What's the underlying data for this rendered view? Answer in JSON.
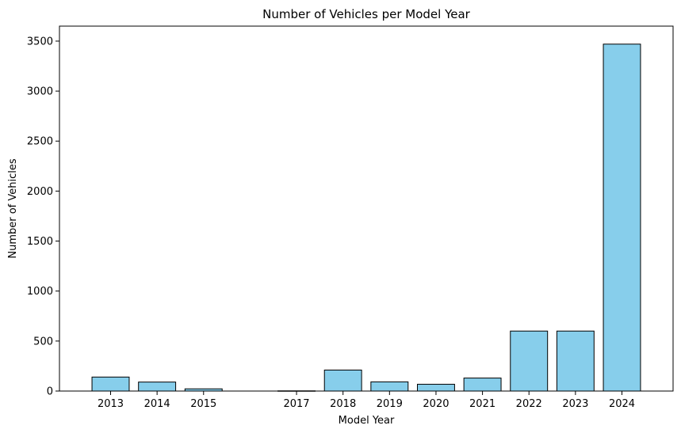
{
  "chart_data": {
    "type": "bar",
    "title": "Number of Vehicles per Model Year",
    "xlabel": "Model Year",
    "ylabel": "Number of Vehicles",
    "x": [
      2013,
      2014,
      2015,
      2017,
      2018,
      2019,
      2020,
      2021,
      2022,
      2023,
      2024
    ],
    "values": [
      140,
      90,
      22,
      2,
      210,
      92,
      68,
      130,
      600,
      600,
      3470
    ],
    "x_ticks": [
      2013,
      2014,
      2015,
      2017,
      2018,
      2019,
      2020,
      2021,
      2022,
      2023,
      2024
    ],
    "xlim": [
      2011.9,
      2025.1
    ],
    "ylim": [
      0,
      3650
    ],
    "y_ticks": [
      0,
      500,
      1000,
      1500,
      2000,
      2500,
      3000,
      3500
    ],
    "bar_color": "#87CEEB",
    "edge_color": "#000000",
    "grid": false,
    "legend": false
  }
}
